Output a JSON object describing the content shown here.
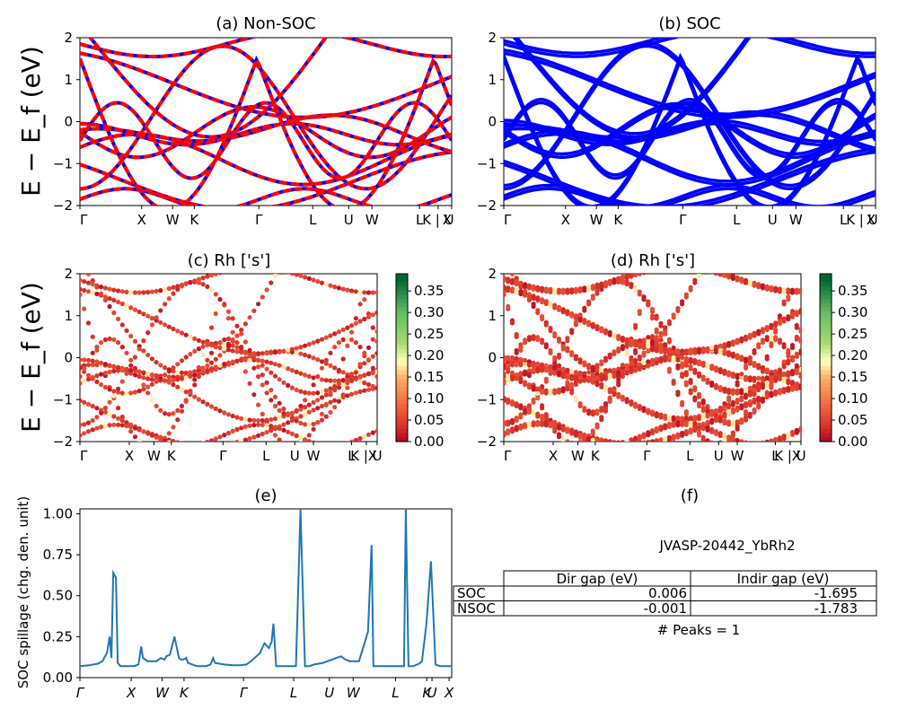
{
  "figure": {
    "ylabel_band": "E − E_f (eV)",
    "colorbar_ticks": [
      "0.00",
      "0.05",
      "0.10",
      "0.15",
      "0.20",
      "0.25",
      "0.30",
      "0.35"
    ]
  },
  "panels": {
    "a": {
      "title": "(a) Non-SOC"
    },
    "b": {
      "title": "(b) SOC"
    },
    "c": {
      "title": "(c)  Rh ['s']"
    },
    "d": {
      "title": "(d) Rh ['s']"
    },
    "e": {
      "title": "(e)",
      "ylabel": "SOC spillage (chg. den. unit)"
    },
    "f": {
      "title": "(f)"
    }
  },
  "band_axis": {
    "ylim": [
      -2,
      2
    ],
    "yticks": [
      "2",
      "1",
      "0",
      "−1",
      "−2"
    ],
    "kpath_labels": [
      "Γ",
      "X",
      "W",
      "K",
      "Γ",
      "L",
      "U",
      "W",
      "L",
      "K | U",
      "X"
    ]
  },
  "spillage_axis": {
    "ylim": [
      0,
      1.03
    ],
    "yticks": [
      "0.00",
      "0.25",
      "0.50",
      "0.75",
      "1.00"
    ],
    "kpath_labels": [
      "Γ",
      "X",
      "W",
      "K",
      "Γ",
      "L",
      "U",
      "W",
      "L",
      "K",
      "U",
      "X"
    ]
  },
  "info": {
    "material": "JVASP-20442_YbRh2",
    "table": {
      "header": [
        "",
        "Dir gap (eV)",
        "Indir gap (eV)"
      ],
      "rows": [
        [
          "SOC",
          "0.006",
          "-1.695"
        ],
        [
          "NSOC",
          "-0.001",
          "-1.783"
        ]
      ]
    },
    "peaks": "# Peaks = 1"
  },
  "colors": {
    "nonsoc_red": "#ff0000",
    "nonsoc_blue": "#0000ff",
    "soc_blue": "#0000ff",
    "spillage_line": "#1f77b4"
  },
  "chart_data": [
    {
      "type": "line",
      "panel": "e",
      "title": "(e)",
      "ylabel": "SOC spillage (chg. den. unit)",
      "ylim": [
        0,
        1.03
      ],
      "x": [
        0,
        10,
        20,
        25,
        30,
        33,
        35,
        37,
        40,
        42,
        45,
        50,
        60,
        65,
        68,
        70,
        75,
        85,
        90,
        94,
        96,
        100,
        105,
        110,
        112,
        115,
        118,
        120,
        125,
        130,
        140,
        145,
        148,
        150,
        160,
        170,
        178,
        185,
        190,
        200,
        205,
        210,
        213,
        215,
        218,
        220,
        222,
        225,
        230,
        240,
        245,
        250,
        255,
        260,
        270,
        280,
        285,
        290,
        295,
        300,
        310,
        320,
        324,
        326,
        330,
        340,
        350,
        355,
        360,
        362,
        365,
        370,
        375,
        378,
        380,
        385,
        390,
        395,
        400,
        407,
        410,
        413
      ],
      "values": [
        0.07,
        0.075,
        0.085,
        0.1,
        0.15,
        0.25,
        0.12,
        0.64,
        0.61,
        0.09,
        0.07,
        0.07,
        0.07,
        0.08,
        0.19,
        0.12,
        0.1,
        0.1,
        0.12,
        0.11,
        0.13,
        0.14,
        0.25,
        0.12,
        0.11,
        0.11,
        0.12,
        0.09,
        0.08,
        0.07,
        0.07,
        0.08,
        0.12,
        0.09,
        0.08,
        0.075,
        0.075,
        0.08,
        0.1,
        0.15,
        0.21,
        0.18,
        0.22,
        0.33,
        0.07,
        0.07,
        0.07,
        0.07,
        0.07,
        0.07,
        1.03,
        0.07,
        0.07,
        0.08,
        0.09,
        0.11,
        0.12,
        0.13,
        0.11,
        0.1,
        0.1,
        0.28,
        0.81,
        0.07,
        0.07,
        0.07,
        0.07,
        0.07,
        0.07,
        1.03,
        0.07,
        0.07,
        0.08,
        0.09,
        0.1,
        0.33,
        0.71,
        0.08,
        0.07,
        0.07,
        0.07,
        0.07
      ],
      "xticks": [
        "Γ",
        "X",
        "W",
        "K",
        "Γ",
        "L",
        "U",
        "W",
        "L",
        "K",
        "U",
        "X"
      ]
    }
  ]
}
